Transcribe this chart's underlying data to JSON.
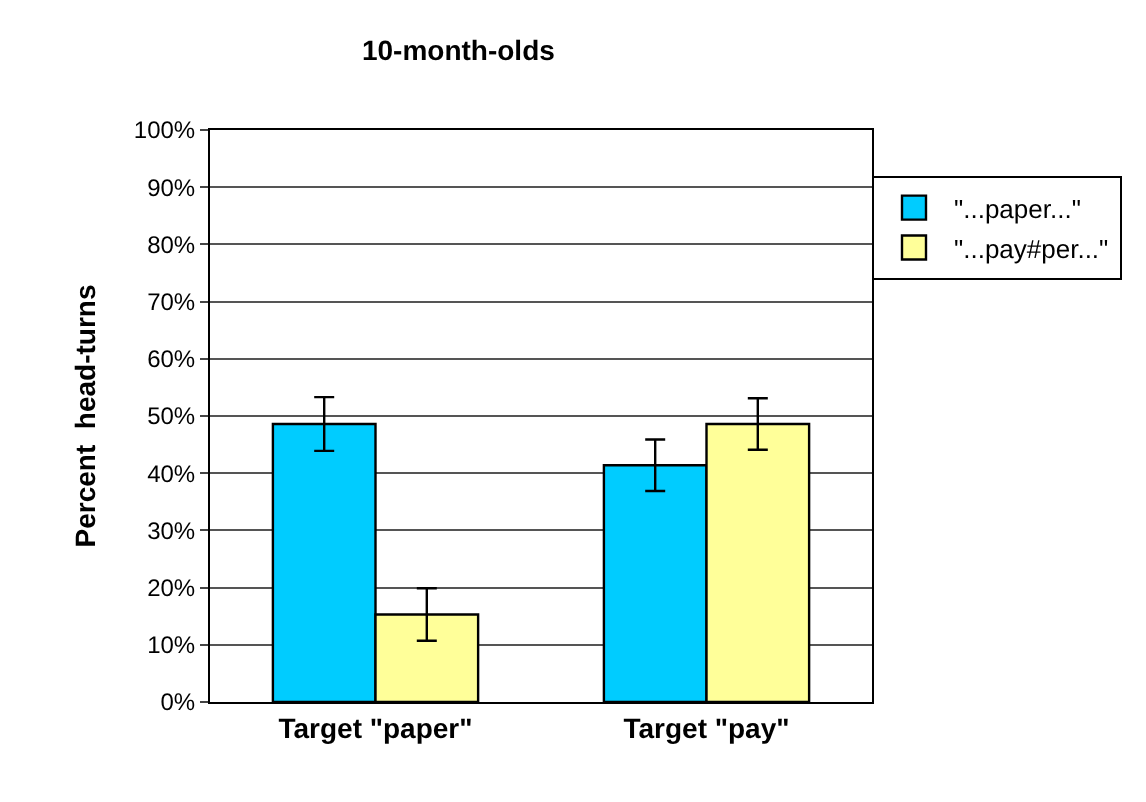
{
  "chart_data": {
    "type": "bar",
    "title": "10-month-olds",
    "ylabel": "Percent  head-turns",
    "categories": [
      "Target \"paper\"",
      "Target \"pay\""
    ],
    "series": [
      {
        "name": "\"...paper...\"",
        "color": "#00ccff",
        "values": [
          48.6,
          41.4
        ],
        "errors": [
          4.7,
          4.5
        ]
      },
      {
        "name": "\"...pay#per...\"",
        "color": "#ffff99",
        "values": [
          15.3,
          48.6
        ],
        "errors": [
          4.6,
          4.5
        ]
      }
    ],
    "ylim": [
      0,
      100
    ],
    "yticks": [
      {
        "value": 0,
        "label": "0%"
      },
      {
        "value": 10,
        "label": "10%"
      },
      {
        "value": 20,
        "label": "20%"
      },
      {
        "value": 30,
        "label": "30%"
      },
      {
        "value": 40,
        "label": "40%"
      },
      {
        "value": 50,
        "label": "50%"
      },
      {
        "value": 60,
        "label": "60%"
      },
      {
        "value": 70,
        "label": "70%"
      },
      {
        "value": 80,
        "label": "80%"
      },
      {
        "value": 90,
        "label": "90%"
      },
      {
        "value": 100,
        "label": "100%"
      }
    ],
    "grid": "y",
    "legend": "top right"
  }
}
